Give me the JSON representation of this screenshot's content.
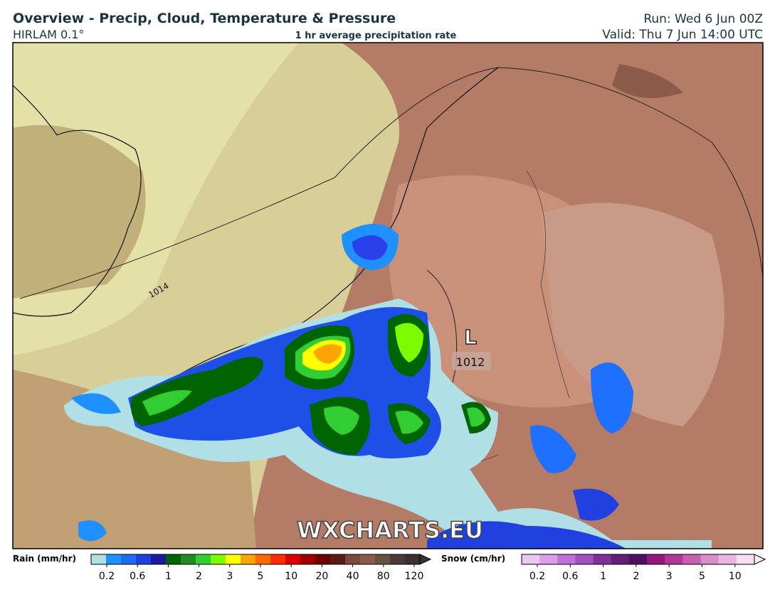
{
  "header": {
    "title": "Overview - Precip, Cloud, Temperature & Pressure",
    "model": "HIRLAM 0.1°",
    "subtitle": "1 hr average precipitation rate",
    "run": "Run: Wed 6 Jun 00Z",
    "valid": "Valid: Thu 7 Jun 14:00 UTC"
  },
  "map": {
    "low_label": "L",
    "low_pressure": 1012,
    "isobar_label": 1014,
    "watermark": "WXCHARTS.EU"
  },
  "legend": {
    "rain": {
      "title": "Rain (mm/hr)",
      "ticks": [
        0.2,
        0.6,
        1,
        2,
        3,
        5,
        10,
        20,
        40,
        80,
        120
      ],
      "colors": [
        "#b0e0e6",
        "#1e90ff",
        "#1c6ef0",
        "#2040e0",
        "#1a1a9a",
        "#006400",
        "#228b22",
        "#32cd32",
        "#7cfc00",
        "#ffff00",
        "#ffa500",
        "#ff6a00",
        "#ff2a00",
        "#dd0000",
        "#a00000",
        "#700000",
        "#5a1a1a",
        "#7a4a3a",
        "#8b5a4a",
        "#6a5040",
        "#4a3a3a",
        "#3a3030"
      ]
    },
    "snow": {
      "title": "Snow (cm/hr)",
      "ticks": [
        0.2,
        0.6,
        1,
        2,
        3,
        5,
        10
      ],
      "colors": [
        "#e8c8f0",
        "#d8a0e8",
        "#c070d8",
        "#a050c0",
        "#803098",
        "#602078",
        "#501060",
        "#901880",
        "#b03898",
        "#c860b0",
        "#d890c8",
        "#e8b8e0",
        "#f4e0f0"
      ]
    }
  }
}
